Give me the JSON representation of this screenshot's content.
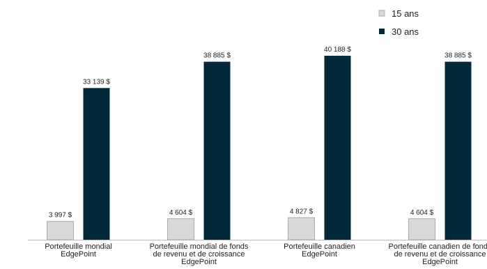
{
  "chart_data": {
    "type": "bar",
    "categories": [
      "Portefeuille mondial\nEdgePoint",
      "Portefeuille mondial de fonds\nde revenu et de croissance\nEdgePoint",
      "Portefeuille canadien\nEdgePoint",
      "Portefeuille canadien de fonds\nde revenu et de croissance\nEdgePoint"
    ],
    "series": [
      {
        "name": "15 ans",
        "color": "#d9d9d9",
        "values": [
          3997,
          4604,
          4827,
          4604
        ],
        "value_labels": [
          "3 997 $",
          "4 604 $",
          "4 827 $",
          "4 604 $"
        ]
      },
      {
        "name": "30 ans",
        "color": "#022a3a",
        "values": [
          33139,
          38885,
          40188,
          38885
        ],
        "value_labels": [
          "33 139 $",
          "38 885 $",
          "40 188 $",
          "38 885 $"
        ]
      }
    ],
    "ylim": [
      0,
      41000
    ],
    "legend": "top-right"
  }
}
